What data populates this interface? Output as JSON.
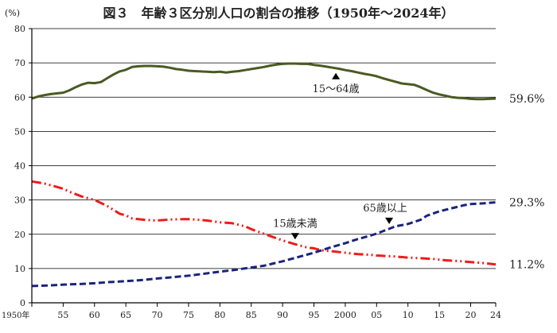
{
  "chart_data": {
    "type": "line",
    "title": "図３　年齢３区分別人口の割合の推移（1950年～2024年）",
    "y_unit_label": "(%)",
    "ylim": [
      0,
      80
    ],
    "y_ticks": [
      0,
      10,
      20,
      30,
      40,
      50,
      60,
      70,
      80
    ],
    "xlim": [
      1950,
      2024
    ],
    "x_ticks": [
      {
        "year": 1950,
        "label": "1950年"
      },
      {
        "year": 1955,
        "label": "55"
      },
      {
        "year": 1960,
        "label": "60"
      },
      {
        "year": 1965,
        "label": "65"
      },
      {
        "year": 1970,
        "label": "70"
      },
      {
        "year": 1975,
        "label": "75"
      },
      {
        "year": 1980,
        "label": "80"
      },
      {
        "year": 1985,
        "label": "85"
      },
      {
        "year": 1990,
        "label": "90"
      },
      {
        "year": 1995,
        "label": "95"
      },
      {
        "year": 2000,
        "label": "2000"
      },
      {
        "year": 2005,
        "label": "05"
      },
      {
        "year": 2010,
        "label": "10"
      },
      {
        "year": 2015,
        "label": "15"
      },
      {
        "year": 2020,
        "label": "20"
      },
      {
        "year": 2024,
        "label": "24"
      }
    ],
    "grid": true,
    "series": [
      {
        "name": "15～64歳",
        "color": "#4a5a22",
        "style": "solid",
        "end_label": "59.6%",
        "annotation_year": 1998.5,
        "points": [
          [
            1950,
            59.6
          ],
          [
            1951,
            60.2
          ],
          [
            1952,
            60.6
          ],
          [
            1953,
            60.9
          ],
          [
            1954,
            61.1
          ],
          [
            1955,
            61.3
          ],
          [
            1956,
            62.0
          ],
          [
            1957,
            62.9
          ],
          [
            1958,
            63.7
          ],
          [
            1959,
            64.2
          ],
          [
            1960,
            64.1
          ],
          [
            1961,
            64.4
          ],
          [
            1962,
            65.5
          ],
          [
            1963,
            66.6
          ],
          [
            1964,
            67.5
          ],
          [
            1965,
            68.0
          ],
          [
            1966,
            68.8
          ],
          [
            1967,
            69.0
          ],
          [
            1968,
            69.1
          ],
          [
            1969,
            69.1
          ],
          [
            1970,
            69.0
          ],
          [
            1971,
            68.9
          ],
          [
            1972,
            68.6
          ],
          [
            1973,
            68.2
          ],
          [
            1974,
            68.0
          ],
          [
            1975,
            67.7
          ],
          [
            1976,
            67.6
          ],
          [
            1977,
            67.5
          ],
          [
            1978,
            67.4
          ],
          [
            1979,
            67.3
          ],
          [
            1980,
            67.4
          ],
          [
            1981,
            67.2
          ],
          [
            1982,
            67.4
          ],
          [
            1983,
            67.6
          ],
          [
            1984,
            67.9
          ],
          [
            1985,
            68.2
          ],
          [
            1986,
            68.5
          ],
          [
            1987,
            68.8
          ],
          [
            1988,
            69.2
          ],
          [
            1989,
            69.5
          ],
          [
            1990,
            69.7
          ],
          [
            1991,
            69.8
          ],
          [
            1992,
            69.8
          ],
          [
            1993,
            69.7
          ],
          [
            1994,
            69.7
          ],
          [
            1995,
            69.4
          ],
          [
            1996,
            69.2
          ],
          [
            1997,
            68.9
          ],
          [
            1998,
            68.6
          ],
          [
            1999,
            68.3
          ],
          [
            2000,
            67.9
          ],
          [
            2001,
            67.6
          ],
          [
            2002,
            67.2
          ],
          [
            2003,
            66.8
          ],
          [
            2004,
            66.5
          ],
          [
            2005,
            66.1
          ],
          [
            2006,
            65.5
          ],
          [
            2007,
            65.0
          ],
          [
            2008,
            64.5
          ],
          [
            2009,
            64.0
          ],
          [
            2010,
            63.8
          ],
          [
            2011,
            63.6
          ],
          [
            2012,
            62.9
          ],
          [
            2013,
            62.1
          ],
          [
            2014,
            61.3
          ],
          [
            2015,
            60.8
          ],
          [
            2016,
            60.4
          ],
          [
            2017,
            60.0
          ],
          [
            2018,
            59.8
          ],
          [
            2019,
            59.7
          ],
          [
            2020,
            59.5
          ],
          [
            2021,
            59.4
          ],
          [
            2022,
            59.4
          ],
          [
            2023,
            59.5
          ],
          [
            2024,
            59.6
          ]
        ]
      },
      {
        "name": "15歳未満",
        "color": "#ee1c1c",
        "style": "dash-dot-dot",
        "end_label": "11.2%",
        "annotation_year": 1992,
        "points": [
          [
            1950,
            35.4
          ],
          [
            1952,
            34.8
          ],
          [
            1954,
            33.8
          ],
          [
            1955,
            33.3
          ],
          [
            1956,
            32.4
          ],
          [
            1958,
            31.0
          ],
          [
            1960,
            30.0
          ],
          [
            1962,
            28.3
          ],
          [
            1964,
            26.0
          ],
          [
            1965,
            25.5
          ],
          [
            1966,
            24.6
          ],
          [
            1968,
            24.2
          ],
          [
            1970,
            24.0
          ],
          [
            1972,
            24.3
          ],
          [
            1974,
            24.4
          ],
          [
            1975,
            24.4
          ],
          [
            1976,
            24.3
          ],
          [
            1978,
            24.0
          ],
          [
            1980,
            23.5
          ],
          [
            1982,
            23.2
          ],
          [
            1984,
            22.3
          ],
          [
            1985,
            21.5
          ],
          [
            1986,
            20.8
          ],
          [
            1988,
            19.5
          ],
          [
            1990,
            18.2
          ],
          [
            1992,
            17.1
          ],
          [
            1994,
            16.1
          ],
          [
            1995,
            15.9
          ],
          [
            1996,
            15.4
          ],
          [
            1998,
            15.0
          ],
          [
            2000,
            14.6
          ],
          [
            2002,
            14.2
          ],
          [
            2004,
            14.0
          ],
          [
            2005,
            13.8
          ],
          [
            2006,
            13.7
          ],
          [
            2008,
            13.5
          ],
          [
            2010,
            13.2
          ],
          [
            2012,
            13.0
          ],
          [
            2014,
            12.8
          ],
          [
            2015,
            12.6
          ],
          [
            2016,
            12.4
          ],
          [
            2018,
            12.2
          ],
          [
            2020,
            11.9
          ],
          [
            2022,
            11.6
          ],
          [
            2024,
            11.2
          ]
        ]
      },
      {
        "name": "65歳以上",
        "color": "#1a237e",
        "style": "dashed",
        "end_label": "29.3%",
        "annotation_year": 2007,
        "points": [
          [
            1950,
            4.9
          ],
          [
            1952,
            5.0
          ],
          [
            1954,
            5.2
          ],
          [
            1955,
            5.3
          ],
          [
            1958,
            5.5
          ],
          [
            1960,
            5.7
          ],
          [
            1962,
            6.0
          ],
          [
            1965,
            6.3
          ],
          [
            1968,
            6.7
          ],
          [
            1970,
            7.1
          ],
          [
            1972,
            7.4
          ],
          [
            1975,
            7.9
          ],
          [
            1978,
            8.6
          ],
          [
            1980,
            9.1
          ],
          [
            1982,
            9.5
          ],
          [
            1985,
            10.3
          ],
          [
            1987,
            10.8
          ],
          [
            1990,
            12.1
          ],
          [
            1992,
            13.1
          ],
          [
            1995,
            14.6
          ],
          [
            1997,
            15.8
          ],
          [
            2000,
            17.4
          ],
          [
            2002,
            18.6
          ],
          [
            2004,
            19.6
          ],
          [
            2005,
            20.2
          ],
          [
            2007,
            21.6
          ],
          [
            2008,
            22.3
          ],
          [
            2010,
            23.0
          ],
          [
            2012,
            24.2
          ],
          [
            2013,
            25.4
          ],
          [
            2015,
            26.7
          ],
          [
            2017,
            27.6
          ],
          [
            2019,
            28.5
          ],
          [
            2020,
            28.8
          ],
          [
            2022,
            29.0
          ],
          [
            2024,
            29.3
          ]
        ]
      }
    ]
  }
}
